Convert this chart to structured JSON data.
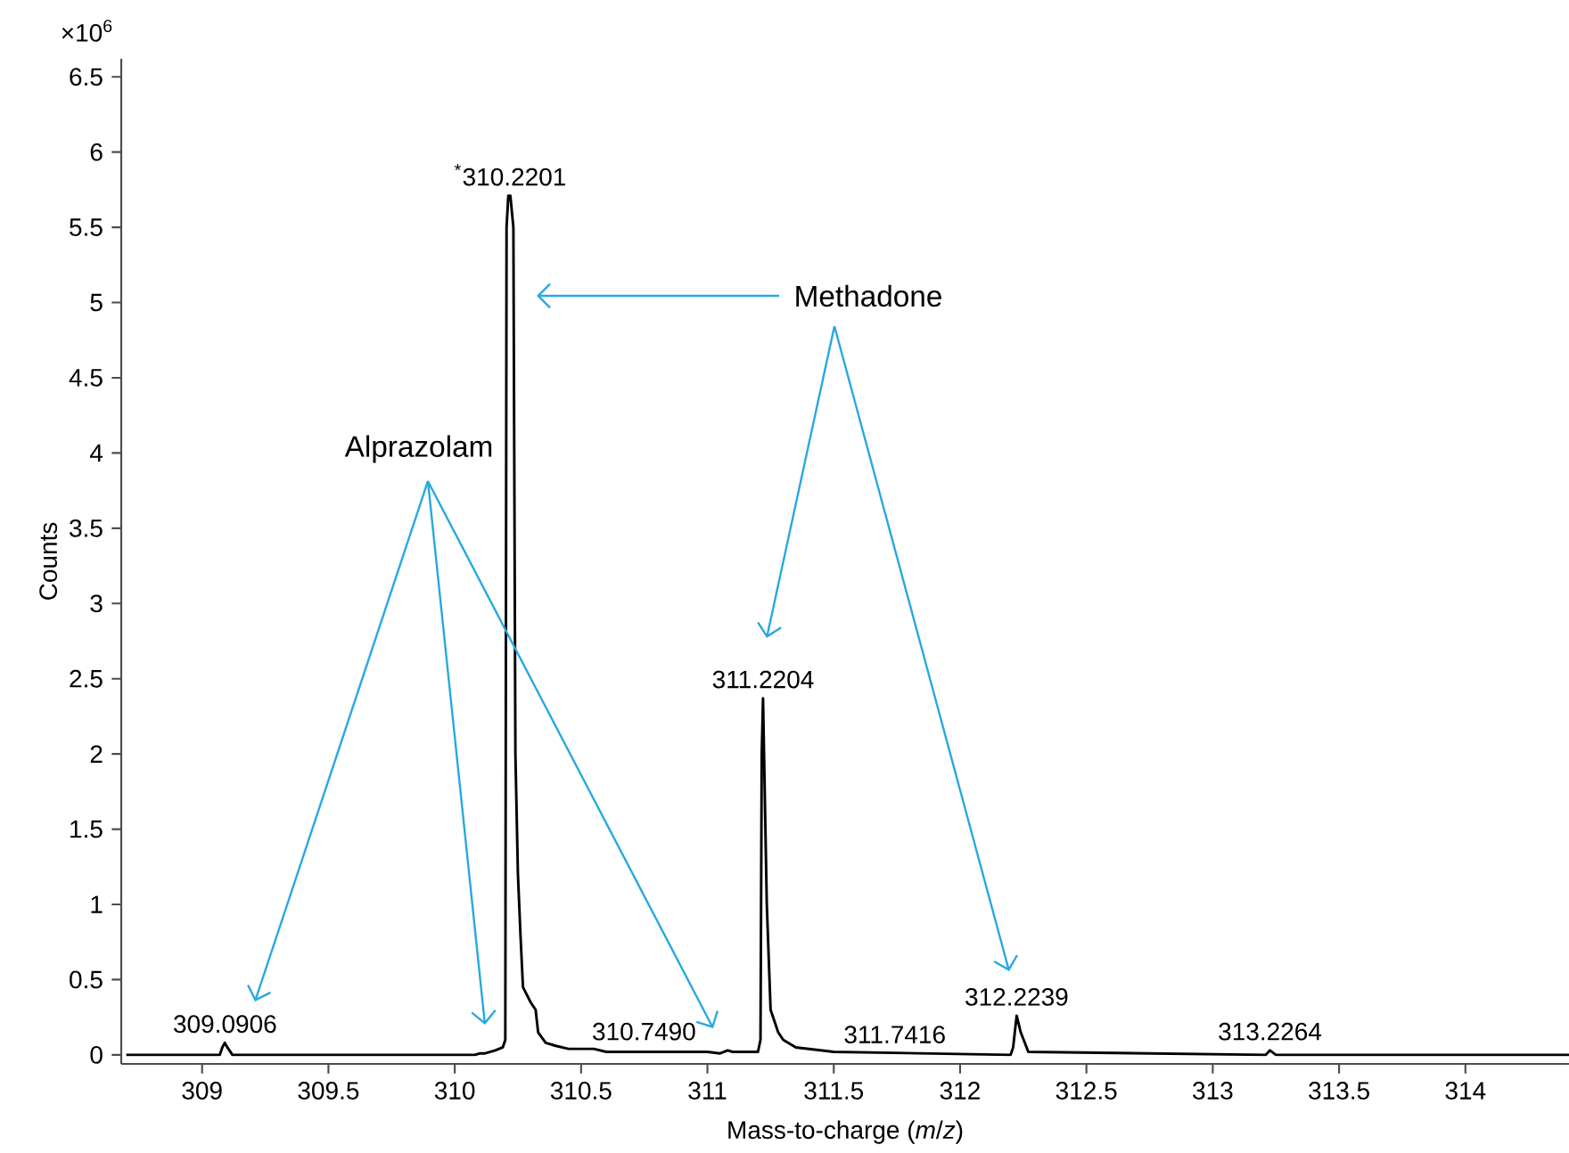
{
  "chart_data": {
    "type": "line",
    "xlabel": "Mass-to-charge (*m*/*z*)",
    "ylabel": "Counts",
    "xlim": [
      308.68,
      314.41
    ],
    "ylim": [
      -0.06,
      6.62
    ],
    "xticks": [
      309,
      309.5,
      310,
      310.5,
      311,
      311.5,
      312,
      312.5,
      313,
      313.5,
      314
    ],
    "yticks": [
      0,
      0.5,
      1,
      1.5,
      2,
      2.5,
      3,
      3.5,
      4,
      4.5,
      5,
      5.5,
      6,
      6.5
    ],
    "grid": false,
    "marker": "none",
    "line_style": "solid",
    "series": [
      {
        "color": "#000000",
        "x": [
          308.7,
          309.07,
          309.08,
          309.09,
          309.1,
          309.12,
          309.5,
          310.08,
          310.1,
          310.12,
          310.16,
          310.19,
          310.2,
          310.205,
          310.212,
          310.22,
          310.232,
          310.24,
          310.25,
          310.26,
          310.27,
          310.3,
          310.32,
          310.33,
          310.36,
          310.4,
          310.45,
          310.55,
          310.6,
          311.0,
          311.05,
          311.08,
          311.1,
          311.2,
          311.21,
          311.215,
          311.22,
          311.235,
          311.25,
          311.28,
          311.3,
          311.35,
          311.5,
          312.2,
          312.21,
          312.2239,
          312.24,
          312.27,
          313.21,
          313.2264,
          313.25,
          314.41
        ],
        "values": [
          0,
          0,
          0.05,
          0.08,
          0.05,
          0,
          0,
          0,
          0.01,
          0.01,
          0.03,
          0.05,
          0.1,
          5.5,
          5.71,
          5.71,
          5.5,
          2.0,
          1.2,
          0.8,
          0.45,
          0.35,
          0.3,
          0.15,
          0.08,
          0.06,
          0.04,
          0.04,
          0.02,
          0.02,
          0.01,
          0.03,
          0.02,
          0.02,
          0.1,
          2.0,
          2.37,
          1.0,
          0.3,
          0.15,
          0.1,
          0.05,
          0.02,
          0.0,
          0.05,
          0.26,
          0.15,
          0.02,
          0.0,
          0.03,
          0.0,
          0.0
        ]
      }
    ],
    "annotations": [
      "×10$^{6}$",
      {
        "text": "$^{*}$310.2201",
        "x": 310.2201,
        "y": 5.71
      },
      {
        "text": "311.2204",
        "x": 311.2204,
        "y": 2.37
      },
      {
        "text": "312.2239",
        "x": 312.2239,
        "y": 0.26
      },
      {
        "text": "309.0906",
        "x": 309.0906,
        "y": 0.08
      },
      {
        "text": "310.7490",
        "x": 310.749,
        "y": 0.03
      },
      {
        "text": "311.7416",
        "x": 311.7416,
        "y": 0.01
      },
      {
        "text": "313.2264",
        "x": 313.2264,
        "y": 0.03
      },
      "Methadone",
      "Alprazolam"
    ]
  }
}
